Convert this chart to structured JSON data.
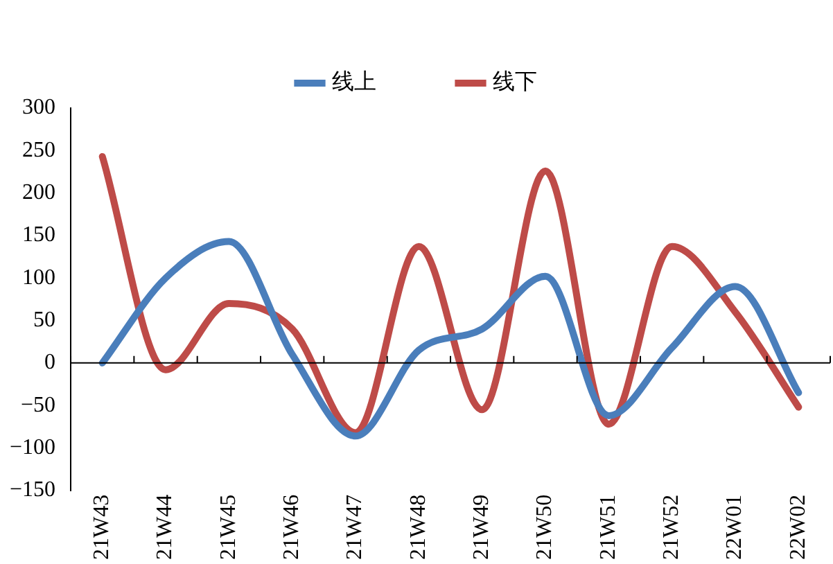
{
  "chart_data": {
    "type": "line",
    "categories": [
      "21W43",
      "21W44",
      "21W45",
      "21W46",
      "21W47",
      "21W48",
      "21W49",
      "21W50",
      "21W51",
      "21W52",
      "22W01",
      "22W02"
    ],
    "series": [
      {
        "name": "线上",
        "color": "#4a7ebb",
        "values": [
          0,
          100,
          143,
          10,
          -86,
          15,
          40,
          102,
          -62,
          18,
          90,
          -35
        ]
      },
      {
        "name": "线下",
        "color": "#be4b48",
        "values": [
          243,
          -8,
          70,
          40,
          -82,
          137,
          -55,
          226,
          -72,
          137,
          60,
          -52
        ]
      }
    ],
    "ylim": [
      -150,
      300
    ],
    "yticks": [
      -150,
      -100,
      -50,
      0,
      50,
      100,
      150,
      200,
      250,
      300
    ],
    "legend": "top",
    "marker": "none",
    "line_style": "solid"
  }
}
